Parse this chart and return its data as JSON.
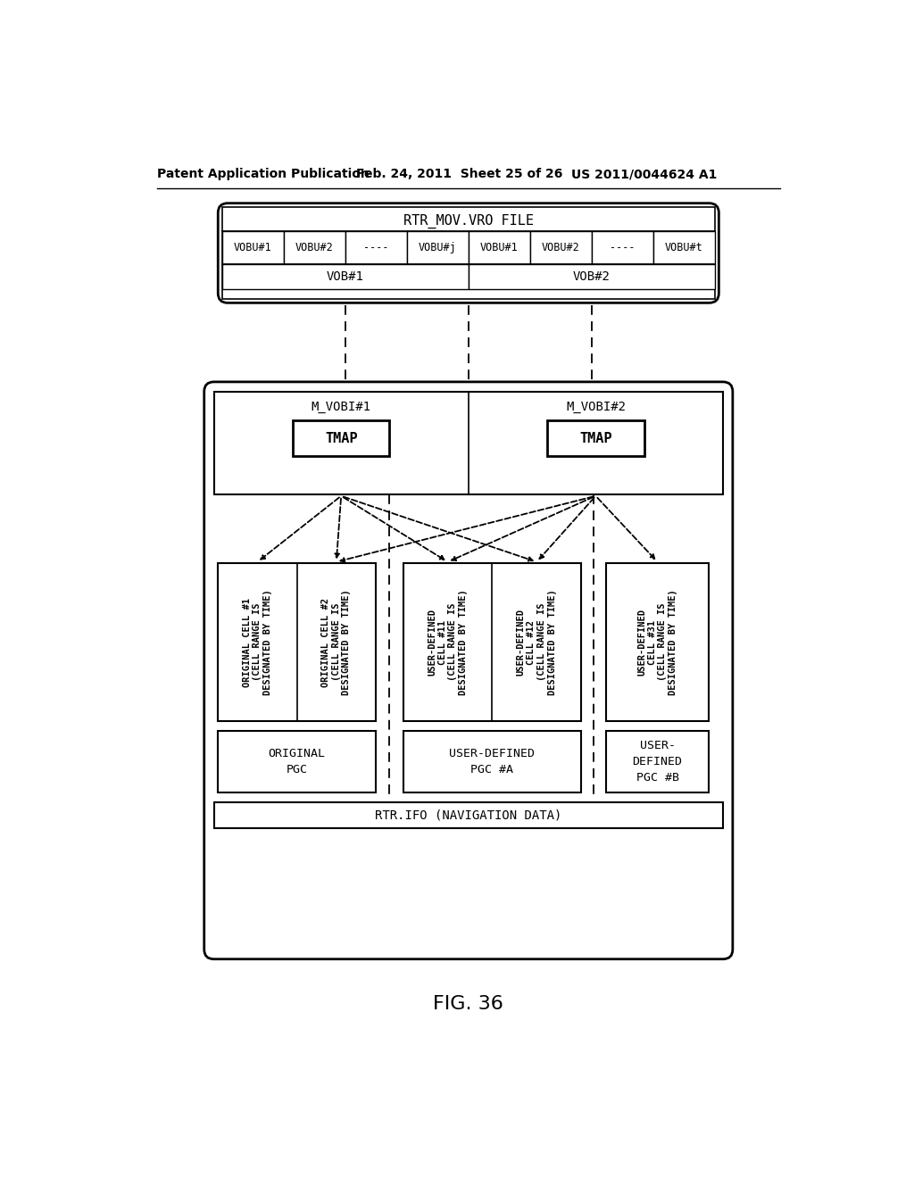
{
  "header_text": "Patent Application Publication",
  "header_date": "Feb. 24, 2011  Sheet 25 of 26",
  "header_patent": "US 2011/0044624 A1",
  "figure_label": "FIG. 36",
  "top_box_title": "RTR_MOV.VRO FILE",
  "vobu_row1": [
    "VOBU#1",
    "VOBU#2",
    "----",
    "VOBU#j",
    "VOBU#1",
    "VOBU#2",
    "----",
    "VOBU#t"
  ],
  "vob_labels": [
    "VOB#1",
    "VOB#2"
  ],
  "bottom_outer_label": "RTR.IFO (NAVIGATION DATA)",
  "mvobi_labels": [
    "M_VOBI#1",
    "M_VOBI#2"
  ],
  "tmap_labels": [
    "TMAP",
    "TMAP"
  ],
  "cell_columns": [
    {
      "lines": [
        "ORIGINAL CELL #1",
        "(CELL RANGE IS",
        "DESIGNATED BY TIME)"
      ]
    },
    {
      "lines": [
        "ORIGINAL CELL #2",
        "(CELL RANGE IS",
        "DESIGNATED BY TIME)"
      ]
    },
    {
      "lines": [
        "USER-DEFINED",
        "CELL #11",
        "(CELL RANGE IS",
        "DESIGNATED BY TIME)"
      ]
    },
    {
      "lines": [
        "USER-DEFINED",
        "CELL #12",
        "(CELL RANGE IS",
        "DESIGNATED BY TIME)"
      ]
    },
    {
      "lines": [
        "USER-DEFINED",
        "CELL #31",
        "(CELL RANGE IS",
        "DESIGNATED BY TIME)"
      ]
    }
  ],
  "pgc_boxes": [
    {
      "lines": [
        "ORIGINAL",
        "PGC"
      ]
    },
    {
      "lines": [
        "USER-DEFINED",
        "PGC #A"
      ]
    },
    {
      "lines": [
        "USER-",
        "DEFINED",
        "PGC #B"
      ]
    }
  ],
  "bg_color": "#ffffff",
  "border_color": "#000000",
  "text_color": "#000000"
}
